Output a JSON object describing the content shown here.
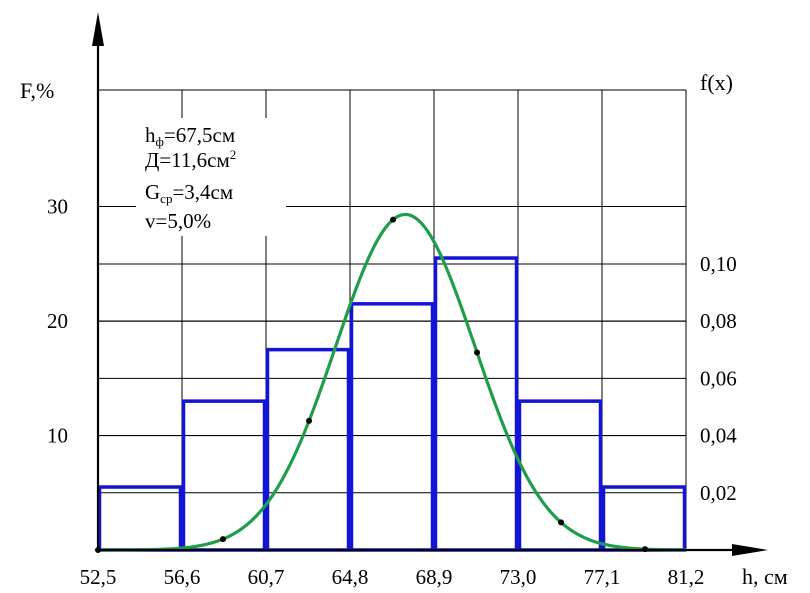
{
  "chart_data": {
    "type": "bar",
    "ylabel_left": "F,%",
    "ylabel_right": "f(x)",
    "xlabel": "h, см",
    "x_edges": [
      52.5,
      56.6,
      60.7,
      64.8,
      68.9,
      73.0,
      77.1,
      81.2
    ],
    "x_tick_labels": [
      "52,5",
      "56,6",
      "60,7",
      "64,8",
      "68,9",
      "73,0",
      "77,1",
      "81,2"
    ],
    "histogram_values": [
      5.5,
      13.0,
      17.5,
      21.5,
      25.5,
      13.0,
      5.5
    ],
    "ylim_left": [
      0,
      40
    ],
    "y_left_ticks": [
      {
        "value": 10,
        "label": "10"
      },
      {
        "value": 20,
        "label": "20"
      },
      {
        "value": 30,
        "label": "30"
      }
    ],
    "y_right_ticks": [
      {
        "value": 0.02,
        "label": "0,02"
      },
      {
        "value": 0.04,
        "label": "0,04"
      },
      {
        "value": 0.06,
        "label": "0,06"
      },
      {
        "value": 0.08,
        "label": "0,08"
      },
      {
        "value": 0.1,
        "label": "0,10"
      }
    ],
    "density_curve": {
      "mean": 67.5,
      "sigma": 3.4,
      "marked_points": [
        {
          "x": 52.5,
          "f": 0.0
        },
        {
          "x": 58.6,
          "f": 0.006
        },
        {
          "x": 62.8,
          "f": 0.044
        },
        {
          "x": 66.9,
          "f": 0.099
        },
        {
          "x": 71.0,
          "f": 0.066
        },
        {
          "x": 75.1,
          "f": 0.008
        },
        {
          "x": 79.2,
          "f": 0.001
        }
      ]
    },
    "annotations": [
      {
        "main": "h",
        "sub": "ф",
        "rest": "=67,5см"
      },
      {
        "main": "Д=11,6см",
        "sup": "2"
      },
      {
        "main": "G",
        "sub": "ср",
        "rest": "=3,4см"
      },
      {
        "main": "v=5,0%"
      }
    ],
    "colors": {
      "bars": "#1414d6",
      "curve": "#1f9e4a",
      "grid": "#000000",
      "points": "#000000"
    },
    "grid": true
  }
}
